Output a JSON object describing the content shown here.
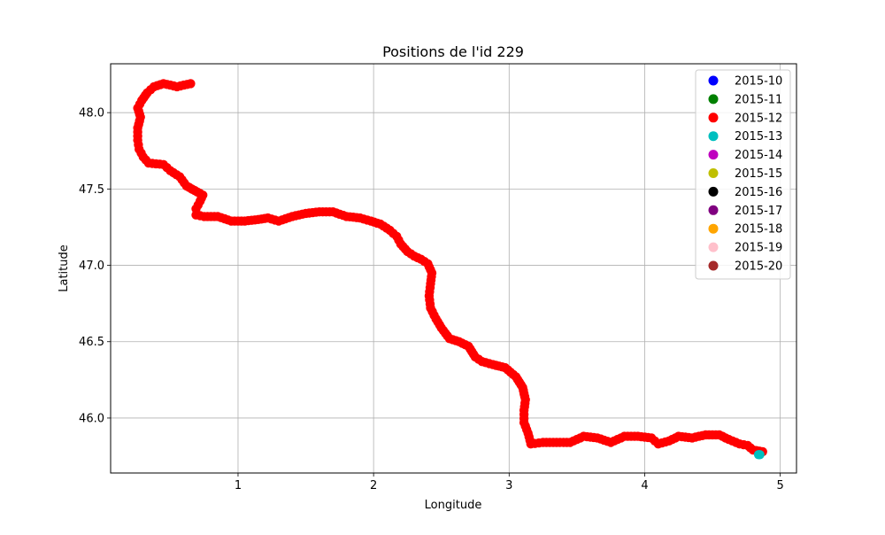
{
  "chart_data": {
    "type": "scatter",
    "title": "Positions de l'id 229",
    "xlabel": "Longitude",
    "ylabel": "Latitude",
    "xlim": [
      0.06,
      5.12
    ],
    "ylim": [
      45.64,
      48.32
    ],
    "xticks": [
      1,
      2,
      3,
      4,
      5
    ],
    "xtick_labels": [
      "1",
      "2",
      "3",
      "4",
      "5"
    ],
    "yticks": [
      46.0,
      46.5,
      47.0,
      47.5,
      48.0
    ],
    "ytick_labels": [
      "46.0",
      "46.5",
      "47.0",
      "47.5",
      "48.0"
    ],
    "grid": true,
    "legend_position": "top-right",
    "series": [
      {
        "name": "2015-10",
        "color": "#0000ff",
        "points": []
      },
      {
        "name": "2015-11",
        "color": "#008000",
        "points": []
      },
      {
        "name": "2015-12",
        "color": "#ff0000",
        "points": [
          [
            0.65,
            48.19
          ],
          [
            0.55,
            48.17
          ],
          [
            0.45,
            48.19
          ],
          [
            0.38,
            48.17
          ],
          [
            0.33,
            48.13
          ],
          [
            0.29,
            48.08
          ],
          [
            0.26,
            48.03
          ],
          [
            0.28,
            47.97
          ],
          [
            0.26,
            47.9
          ],
          [
            0.26,
            47.82
          ],
          [
            0.27,
            47.76
          ],
          [
            0.3,
            47.71
          ],
          [
            0.34,
            47.67
          ],
          [
            0.45,
            47.66
          ],
          [
            0.5,
            47.62
          ],
          [
            0.57,
            47.58
          ],
          [
            0.62,
            47.52
          ],
          [
            0.68,
            47.49
          ],
          [
            0.74,
            47.46
          ],
          [
            0.72,
            47.42
          ],
          [
            0.69,
            47.37
          ],
          [
            0.69,
            47.33
          ],
          [
            0.75,
            47.32
          ],
          [
            0.85,
            47.32
          ],
          [
            0.95,
            47.29
          ],
          [
            1.05,
            47.29
          ],
          [
            1.15,
            47.3
          ],
          [
            1.22,
            47.31
          ],
          [
            1.3,
            47.29
          ],
          [
            1.4,
            47.32
          ],
          [
            1.5,
            47.34
          ],
          [
            1.6,
            47.35
          ],
          [
            1.7,
            47.35
          ],
          [
            1.8,
            47.32
          ],
          [
            1.9,
            47.31
          ],
          [
            1.98,
            47.29
          ],
          [
            2.05,
            47.27
          ],
          [
            2.12,
            47.23
          ],
          [
            2.17,
            47.19
          ],
          [
            2.2,
            47.14
          ],
          [
            2.25,
            47.09
          ],
          [
            2.3,
            47.06
          ],
          [
            2.35,
            47.04
          ],
          [
            2.4,
            47.01
          ],
          [
            2.43,
            46.95
          ],
          [
            2.42,
            46.88
          ],
          [
            2.41,
            46.8
          ],
          [
            2.42,
            46.72
          ],
          [
            2.46,
            46.65
          ],
          [
            2.5,
            46.59
          ],
          [
            2.56,
            46.52
          ],
          [
            2.63,
            46.5
          ],
          [
            2.7,
            46.47
          ],
          [
            2.75,
            46.4
          ],
          [
            2.8,
            46.37
          ],
          [
            2.88,
            46.35
          ],
          [
            2.97,
            46.33
          ],
          [
            3.05,
            46.27
          ],
          [
            3.1,
            46.2
          ],
          [
            3.12,
            46.12
          ],
          [
            3.11,
            46.05
          ],
          [
            3.11,
            45.97
          ],
          [
            3.14,
            45.9
          ],
          [
            3.16,
            45.83
          ],
          [
            3.25,
            45.84
          ],
          [
            3.35,
            45.84
          ],
          [
            3.45,
            45.84
          ],
          [
            3.55,
            45.88
          ],
          [
            3.65,
            45.87
          ],
          [
            3.75,
            45.84
          ],
          [
            3.85,
            45.88
          ],
          [
            3.95,
            45.88
          ],
          [
            4.05,
            45.87
          ],
          [
            4.1,
            45.83
          ],
          [
            4.18,
            45.85
          ],
          [
            4.25,
            45.88
          ],
          [
            4.35,
            45.87
          ],
          [
            4.45,
            45.89
          ],
          [
            4.55,
            45.89
          ],
          [
            4.62,
            45.86
          ],
          [
            4.7,
            45.83
          ],
          [
            4.76,
            45.82
          ],
          [
            4.8,
            45.79
          ],
          [
            4.87,
            45.78
          ]
        ]
      },
      {
        "name": "2015-13",
        "color": "#00bfbf",
        "points": [
          [
            4.84,
            45.76
          ],
          [
            4.85,
            45.76
          ]
        ]
      },
      {
        "name": "2015-14",
        "color": "#bf00bf",
        "points": []
      },
      {
        "name": "2015-15",
        "color": "#bfbf00",
        "points": []
      },
      {
        "name": "2015-16",
        "color": "#000000",
        "points": []
      },
      {
        "name": "2015-17",
        "color": "#800080",
        "points": []
      },
      {
        "name": "2015-18",
        "color": "#ffa500",
        "points": []
      },
      {
        "name": "2015-19",
        "color": "#ffc0cb",
        "points": []
      },
      {
        "name": "2015-20",
        "color": "#a52a2a",
        "points": []
      }
    ]
  }
}
